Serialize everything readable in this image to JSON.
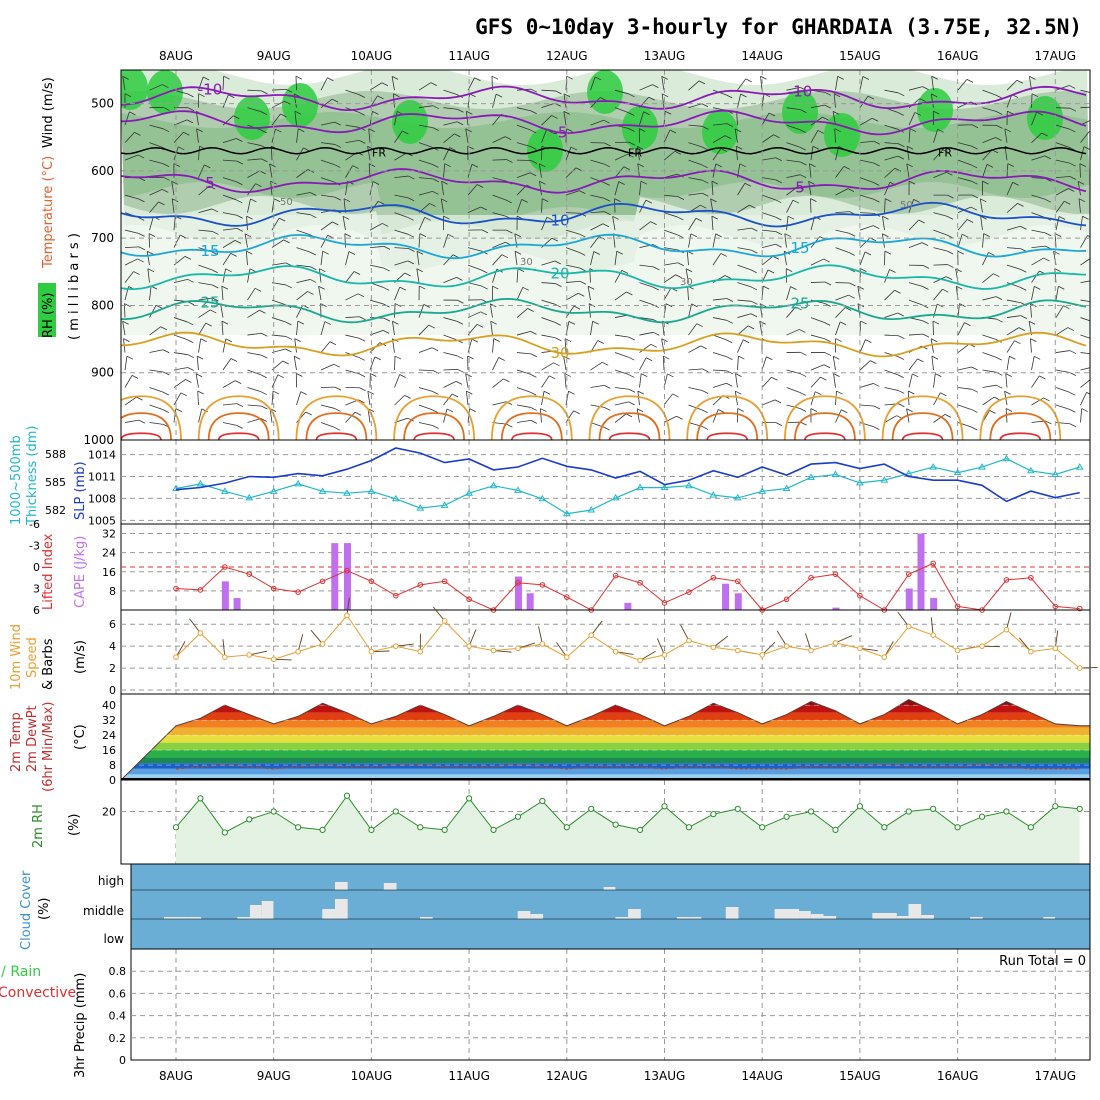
{
  "title": "GFS 0~10day 3-hourly for GHARDAIA (3.75E, 32.5N)",
  "dates": [
    "8AUG",
    "9AUG",
    "10AUG",
    "11AUG",
    "12AUG",
    "13AUG",
    "14AUG",
    "15AUG",
    "16AUG",
    "17AUG"
  ],
  "colors": {
    "rh_fill": "#2ecc40",
    "cloud_bg": "#6aaed6",
    "cloud_bar": "#e8e8e8",
    "slp": "#1a3cc8",
    "thickness": "#22b8c8",
    "lifted": "#e03030",
    "cape": "#c070ee",
    "wind": "#e8a030",
    "rh2m": "#2a8c2a"
  },
  "panel_labels": {
    "upper": [
      "RH (%)",
      "Temperature (°C)",
      "Wind (m/s)",
      "( m i l l i b a r s )"
    ],
    "slp": [
      "1000~500mb",
      "Thickness (dm)",
      "SLP (mb)"
    ],
    "cape": [
      "Lifted Index",
      "CAPE (J/kg)"
    ],
    "wind": [
      "10m Wind",
      "Speed",
      "& Barbs",
      "(m/s)"
    ],
    "temp": [
      "2m Temp",
      "2m DewPt",
      "(6hr Min/Max)",
      "(°C)"
    ],
    "rh": [
      "2m RH",
      "(%)"
    ],
    "cloud": [
      "Cloud Cover",
      "(%)"
    ],
    "precip": [
      "Total / Rain",
      "Convective",
      "3hr Precip (mm)"
    ]
  },
  "upper_air": {
    "pressure_ticks": [
      "500",
      "600",
      "700",
      "800",
      "900",
      "1000"
    ],
    "temp_contours": [
      {
        "label": "-10",
        "level_mb": 492
      },
      {
        "label": "-5",
        "level_mb": 528
      },
      {
        "label": "5",
        "level_mb": 615
      },
      {
        "label": "10",
        "level_mb": 665
      },
      {
        "label": "15",
        "level_mb": 712
      },
      {
        "label": "20",
        "level_mb": 758
      },
      {
        "label": "25",
        "level_mb": 808
      },
      {
        "label": "30",
        "level_mb": 858
      }
    ],
    "freezing_level_label": "FR",
    "rh_labels": [
      "50",
      "30"
    ]
  },
  "slp_panel": {
    "left_ticks": [
      "588",
      "585",
      "582"
    ],
    "right_ticks": [
      "1014",
      "1011",
      "1008",
      "1005"
    ]
  },
  "cape_panel": {
    "left_ticks": [
      "-6",
      "-3",
      "0",
      "3",
      "6"
    ],
    "right_ticks": [
      "32",
      "24",
      "16",
      "8"
    ],
    "cape_bars_jkg": [
      {
        "day": 0.5,
        "v": 12
      },
      {
        "day": 0.62,
        "v": 5
      },
      {
        "day": 1.62,
        "v": 28
      },
      {
        "day": 1.75,
        "v": 28
      },
      {
        "day": 3.5,
        "v": 14
      },
      {
        "day": 3.62,
        "v": 7
      },
      {
        "day": 4.62,
        "v": 3
      },
      {
        "day": 5.62,
        "v": 11
      },
      {
        "day": 5.75,
        "v": 7
      },
      {
        "day": 6.75,
        "v": 1
      },
      {
        "day": 7.5,
        "v": 9
      },
      {
        "day": 7.62,
        "v": 32
      },
      {
        "day": 7.75,
        "v": 5
      }
    ]
  },
  "wind_panel": {
    "ticks": [
      "6",
      "4",
      "2",
      "0"
    ]
  },
  "temp_panel": {
    "ticks": [
      "40",
      "32",
      "24",
      "16",
      "8",
      "0"
    ]
  },
  "rh_panel": {
    "ticks": [
      "20"
    ]
  },
  "cloud_panel": {
    "ticks": [
      "high",
      "middle",
      "low"
    ]
  },
  "precip_panel": {
    "ticks": [
      "0.8",
      "0.6",
      "0.4",
      "0.2",
      "0"
    ],
    "run_total": "Run Total = 0"
  },
  "chart_data": [
    {
      "type": "line",
      "title": "Thickness 1000~500mb (dm)",
      "x_unit": "days from 8AUG",
      "x": [
        0,
        0.25,
        0.5,
        0.75,
        1,
        1.25,
        1.5,
        1.75,
        2,
        2.25,
        2.5,
        2.75,
        3,
        3.25,
        3.5,
        3.75,
        4,
        4.25,
        4.5,
        4.75,
        5,
        5.25,
        5.5,
        5.75,
        6,
        6.25,
        6.5,
        6.75,
        7,
        7.25,
        7.5,
        7.75,
        8,
        8.25,
        8.5,
        8.75,
        9,
        9.25
      ],
      "series": [
        {
          "name": "Thickness",
          "values": [
            584.3,
            584.8,
            584.0,
            583.3,
            584.0,
            584.8,
            584.0,
            583.8,
            584.0,
            583.2,
            582.2,
            582.5,
            583.8,
            584.6,
            584.1,
            583.2,
            581.6,
            582.0,
            583.3,
            584.4,
            584.4,
            584.6,
            583.6,
            583.3,
            584.0,
            584.3,
            585.5,
            585.8,
            584.9,
            585.2,
            585.9,
            586.6,
            586.0,
            586.6,
            587.5,
            586.2,
            585.8,
            586.6
          ]
        },
        {
          "name": "SLP",
          "values": [
            1009.2,
            1009.5,
            1010.1,
            1011.0,
            1010.9,
            1011.4,
            1011.1,
            1012.0,
            1013.2,
            1014.9,
            1014.2,
            1012.9,
            1013.4,
            1011.9,
            1012.3,
            1013.5,
            1012.4,
            1011.9,
            1010.8,
            1011.7,
            1009.9,
            1010.5,
            1011.8,
            1010.9,
            1012.3,
            1011.2,
            1012.7,
            1012.9,
            1012.1,
            1012.7,
            1011.0,
            1010.5,
            1010.5,
            1009.8,
            1007.6,
            1009.0,
            1008.1,
            1008.8
          ]
        }
      ],
      "ylabel": "Thickness (dm) / SLP (mb)"
    },
    {
      "type": "line",
      "title": "Lifted Index",
      "x_unit": "days from 8AUG",
      "x": [
        0,
        0.25,
        0.5,
        0.75,
        1,
        1.25,
        1.5,
        1.75,
        2,
        2.25,
        2.5,
        2.75,
        3,
        3.25,
        3.5,
        3.75,
        4,
        4.25,
        4.5,
        4.75,
        5,
        5.25,
        5.5,
        5.75,
        6,
        6.25,
        6.5,
        6.75,
        7,
        7.25,
        7.5,
        7.75,
        8,
        8.25,
        8.5,
        8.75,
        9,
        9.25
      ],
      "series": [
        {
          "name": "Lifted Index",
          "values": [
            3.0,
            3.2,
            0.0,
            1.0,
            3.0,
            3.5,
            2.0,
            0.5,
            2.0,
            4.0,
            2.5,
            2.0,
            4.5,
            6.0,
            2.2,
            2.5,
            4.2,
            6.0,
            1.2,
            2.2,
            5.0,
            3.5,
            1.5,
            2.0,
            6.0,
            4.5,
            1.5,
            1.0,
            4.0,
            6.0,
            1.0,
            -0.5,
            5.5,
            6.0,
            1.8,
            1.5,
            5.5,
            5.8
          ]
        }
      ],
      "ylim": [
        6,
        -6
      ]
    },
    {
      "type": "line",
      "title": "10m Wind Speed (m/s)",
      "x_unit": "days from 8AUG",
      "x": [
        0,
        0.25,
        0.5,
        0.75,
        1,
        1.25,
        1.5,
        1.75,
        2,
        2.25,
        2.5,
        2.75,
        3,
        3.25,
        3.5,
        3.75,
        4,
        4.25,
        4.5,
        4.75,
        5,
        5.25,
        5.5,
        5.75,
        6,
        6.25,
        6.5,
        6.75,
        7,
        7.25,
        7.5,
        7.75,
        8,
        8.25,
        8.5,
        8.75,
        9,
        9.25
      ],
      "series": [
        {
          "name": "Wind speed",
          "values": [
            3.0,
            5.2,
            3.0,
            3.2,
            2.8,
            3.5,
            4.2,
            6.8,
            3.5,
            4.0,
            3.5,
            6.3,
            4.0,
            3.6,
            3.8,
            4.2,
            3.0,
            5.0,
            3.5,
            2.7,
            3.2,
            4.5,
            3.9,
            3.6,
            3.2,
            4.0,
            3.6,
            4.3,
            3.8,
            3.0,
            5.8,
            5.0,
            3.6,
            4.0,
            5.5,
            3.5,
            3.8,
            2.0
          ]
        }
      ],
      "ylim": [
        0,
        7
      ]
    },
    {
      "type": "area",
      "title": "2m Temp (°C)",
      "x_unit": "days from 8AUG",
      "x": [
        0,
        0.25,
        0.5,
        0.75,
        1,
        1.25,
        1.5,
        1.75,
        2,
        2.25,
        2.5,
        2.75,
        3,
        3.25,
        3.5,
        3.75,
        4,
        4.25,
        4.5,
        4.75,
        5,
        5.25,
        5.5,
        5.75,
        6,
        6.25,
        6.5,
        6.75,
        7,
        7.25,
        7.5,
        7.75,
        8,
        8.25,
        8.5,
        8.75,
        9,
        9.25
      ],
      "series": [
        {
          "name": "2m Temp",
          "values": [
            29,
            33,
            40,
            35,
            30,
            34,
            41,
            36,
            30,
            34,
            40,
            35,
            29,
            34,
            40,
            35,
            29,
            34,
            40,
            35,
            29,
            34,
            41,
            36,
            30,
            35,
            42,
            37,
            30,
            35,
            43,
            37,
            30,
            35,
            42,
            36,
            30,
            29
          ]
        },
        {
          "name": "2m DewPt",
          "values": [
            6,
            7,
            8,
            7,
            6,
            7,
            8,
            7,
            7,
            8,
            8,
            7,
            7,
            7,
            8,
            7,
            6,
            7,
            7,
            7,
            6,
            7,
            7,
            6,
            6,
            6,
            7,
            7,
            7,
            8,
            7,
            7,
            7,
            8,
            7,
            6,
            6,
            6
          ]
        }
      ],
      "ylim": [
        0,
        44
      ]
    },
    {
      "type": "area",
      "title": "2m RH (%)",
      "x_unit": "days from 8AUG",
      "x": [
        0,
        0.25,
        0.5,
        0.75,
        1,
        1.25,
        1.5,
        1.75,
        2,
        2.25,
        2.5,
        2.75,
        3,
        3.25,
        3.5,
        3.75,
        4,
        4.25,
        4.5,
        4.75,
        5,
        5.25,
        5.5,
        5.75,
        6,
        6.25,
        6.5,
        6.75,
        7,
        7.25,
        7.5,
        7.75,
        8,
        8.25,
        8.5,
        8.75,
        9,
        9.25
      ],
      "series": [
        {
          "name": "2m RH",
          "values": [
            14,
            25,
            12,
            17,
            20,
            14,
            13,
            26,
            13,
            20,
            14,
            13,
            25,
            13,
            18,
            24,
            14,
            21,
            15,
            13,
            22,
            14,
            19,
            21,
            14,
            18,
            20,
            13,
            22,
            14,
            20,
            21,
            14,
            18,
            20,
            14,
            22,
            21
          ]
        }
      ],
      "ylim": [
        0,
        30
      ]
    },
    {
      "type": "bar",
      "title": "Cloud Cover",
      "x_unit": "days from 8AUG",
      "series": [
        {
          "name": "middle",
          "bars": [
            [
              0.0,
              0.25,
              2
            ],
            [
              0.25,
              0.38,
              2
            ],
            [
              0.75,
              1.0,
              2
            ],
            [
              0.88,
              1.0,
              14
            ],
            [
              1.0,
              1.12,
              18
            ],
            [
              1.62,
              1.75,
              10
            ],
            [
              1.75,
              1.88,
              20
            ],
            [
              2.62,
              2.75,
              2
            ],
            [
              3.62,
              3.75,
              8
            ],
            [
              3.75,
              3.88,
              5
            ],
            [
              4.62,
              4.75,
              2
            ],
            [
              4.75,
              4.88,
              10
            ],
            [
              5.25,
              5.38,
              2
            ],
            [
              5.38,
              5.5,
              2
            ],
            [
              5.75,
              5.88,
              12
            ],
            [
              6.25,
              6.5,
              10
            ],
            [
              6.5,
              6.62,
              8
            ],
            [
              6.62,
              6.75,
              5
            ],
            [
              6.75,
              6.88,
              3
            ],
            [
              7.25,
              7.5,
              6
            ],
            [
              7.5,
              7.62,
              3
            ],
            [
              7.62,
              7.75,
              15
            ],
            [
              7.75,
              7.88,
              4
            ],
            [
              8.25,
              8.38,
              2
            ],
            [
              9.0,
              9.12,
              2
            ]
          ]
        },
        {
          "name": "high",
          "bars": [
            [
              1.75,
              1.88,
              8
            ],
            [
              2.25,
              2.38,
              7
            ],
            [
              4.5,
              4.62,
              3
            ]
          ]
        }
      ]
    },
    {
      "type": "bar",
      "title": "3hr Precip (mm)",
      "x_unit": "days from 8AUG",
      "series": [
        {
          "name": "Total / Rain",
          "values": []
        },
        {
          "name": "Convective",
          "values": []
        }
      ],
      "ylim": [
        0,
        1
      ]
    }
  ]
}
